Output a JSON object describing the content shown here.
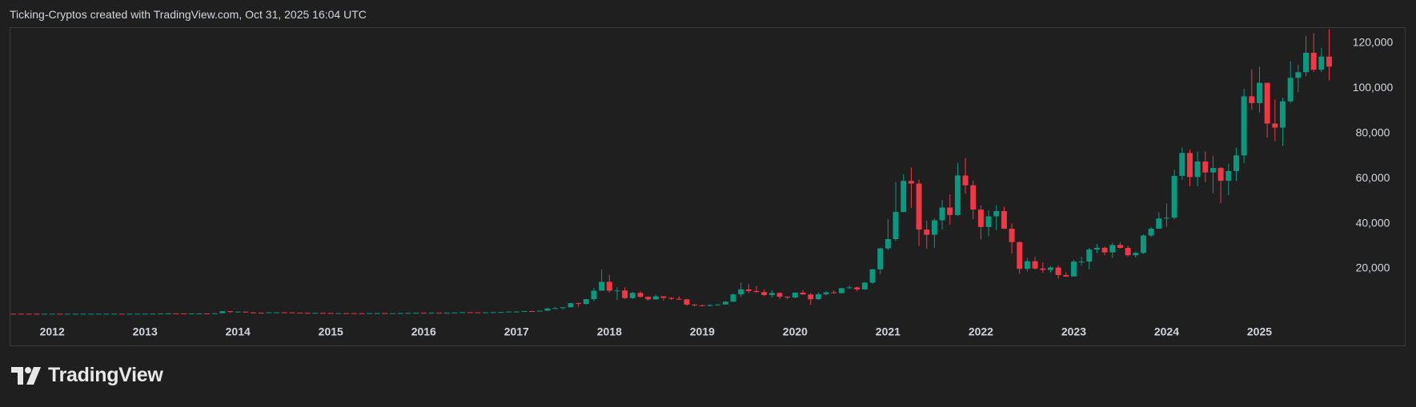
{
  "header": "Ticking-Cryptos created with TradingView.com, Oct 31, 2025 16:04 UTC",
  "logo": "TradingView",
  "chart_data": {
    "type": "candlestick",
    "up_color": "#089981",
    "down_color": "#f23645",
    "grid": false,
    "xlim": [
      -0.5,
      171.5
    ],
    "ylim": [
      -2000,
      127100
    ],
    "xticks": [
      {
        "value": 5,
        "label": "2012"
      },
      {
        "value": 17,
        "label": "2013"
      },
      {
        "value": 29,
        "label": "2014"
      },
      {
        "value": 41,
        "label": "2015"
      },
      {
        "value": 53,
        "label": "2016"
      },
      {
        "value": 65,
        "label": "2017"
      },
      {
        "value": 77,
        "label": "2018"
      },
      {
        "value": 89,
        "label": "2019"
      },
      {
        "value": 101,
        "label": "2020"
      },
      {
        "value": 113,
        "label": "2021"
      },
      {
        "value": 125,
        "label": "2022"
      },
      {
        "value": 137,
        "label": "2023"
      },
      {
        "value": 149,
        "label": "2024"
      },
      {
        "value": 161,
        "label": "2025"
      }
    ],
    "yticks": [
      {
        "value": 20000,
        "label": "20,000"
      },
      {
        "value": 40000,
        "label": "40,000"
      },
      {
        "value": 60000,
        "label": "60,000"
      },
      {
        "value": 80000,
        "label": "80,000"
      },
      {
        "value": 100000,
        "label": "100,000"
      },
      {
        "value": 120000,
        "label": "120,000"
      }
    ],
    "open": [
      13.4,
      8.2,
      5.1,
      3.2,
      3.0,
      4.7,
      5.5,
      4.9,
      4.9,
      5.0,
      5.2,
      6.7,
      9.3,
      10.2,
      12.4,
      11.2,
      12.6,
      13.5,
      20.4,
      33.4,
      93,
      139,
      129,
      97,
      106,
      135,
      133,
      204,
      1130,
      754,
      935,
      550,
      455,
      448,
      628,
      641,
      585,
      480,
      387,
      338,
      378,
      320,
      217,
      254,
      244,
      236,
      230,
      263,
      284,
      230,
      236,
      314,
      377,
      430,
      368,
      437,
      416,
      448,
      531,
      673,
      624,
      575,
      609,
      700,
      742,
      964,
      970,
      1190,
      1080,
      1350,
      2300,
      2480,
      2875,
      4700,
      4340,
      6470,
      10230,
      14150,
      10220,
      10330,
      6930,
      9240,
      7490,
      6390,
      7730,
      7030,
      6630,
      6370,
      4040,
      3740,
      3460,
      3850,
      4100,
      5320,
      8570,
      10820,
      10080,
      9630,
      8290,
      9200,
      7570,
      7190,
      9350,
      8540,
      6440,
      8660,
      9460,
      9140,
      11350,
      11680,
      10780,
      13800,
      19700,
      28990,
      33110,
      45140,
      58920,
      57750,
      37330,
      35040,
      41460,
      47100,
      43790,
      61320,
      56950,
      46220,
      38480,
      43190,
      45540,
      37710,
      31790,
      19940,
      23300,
      20050,
      19430,
      20490,
      17170,
      16540,
      23140,
      23150,
      28480,
      29250,
      27220,
      30480,
      29230,
      25940,
      26970,
      34670,
      37720,
      42270,
      42580,
      61130,
      71330,
      60640,
      67490,
      62680,
      64630,
      58970,
      63330,
      70220,
      96450,
      93430,
      102430,
      84370,
      82550,
      94210,
      104640,
      107140,
      115760,
      108240,
      114050
    ],
    "high": [
      13.5,
      8.8,
      5.2,
      3.5,
      4.8,
      7.4,
      6.6,
      5.4,
      5.4,
      5.2,
      6.8,
      9.5,
      16,
      12.6,
      12.8,
      12.6,
      13.8,
      20.6,
      33.5,
      95,
      266,
      140,
      129,
      109,
      139,
      145,
      220,
      1242,
      1163,
      1020,
      950,
      719,
      548,
      631,
      677,
      659,
      600,
      490,
      415,
      455,
      384,
      320,
      265,
      300,
      262,
      247,
      268,
      318,
      291,
      244,
      334,
      496,
      465,
      462,
      448,
      440,
      468,
      531,
      780,
      703,
      624,
      610,
      716,
      753,
      966,
      1150,
      1210,
      1290,
      1350,
      2760,
      2980,
      2920,
      4740,
      4980,
      6470,
      11500,
      19700,
      17250,
      11790,
      11700,
      9770,
      9990,
      7760,
      8490,
      7770,
      7400,
      7680,
      6570,
      4310,
      4070,
      4210,
      4100,
      5640,
      9070,
      13880,
      13130,
      12320,
      10900,
      10370,
      9510,
      7740,
      9550,
      10500,
      9190,
      9460,
      10070,
      10380,
      11440,
      12470,
      12050,
      14100,
      19860,
      29300,
      41950,
      58350,
      61800,
      64860,
      59500,
      41330,
      42300,
      50500,
      52920,
      66930,
      69000,
      59040,
      47990,
      45820,
      48190,
      47460,
      40000,
      31960,
      24670,
      25210,
      22800,
      21090,
      21480,
      18390,
      23960,
      25250,
      29190,
      31000,
      29830,
      31430,
      31800,
      30220,
      27490,
      35200,
      38430,
      45000,
      48970,
      63910,
      73780,
      72770,
      71950,
      71980,
      70020,
      65100,
      66500,
      73620,
      99800,
      108350,
      109590,
      102500,
      95040,
      95770,
      111980,
      110400,
      123220,
      124460,
      117900,
      126200
    ],
    "low": [
      7.1,
      4.7,
      2.2,
      2.0,
      2.8,
      4.6,
      4.2,
      4.6,
      4.7,
      4.9,
      5.2,
      6.5,
      7.6,
      10,
      10,
      10.7,
      12.4,
      13.3,
      19.6,
      33,
      50,
      80,
      89,
      65,
      93,
      108,
      100,
      190,
      380,
      750,
      520,
      445,
      340,
      448,
      535,
      565,
      461,
      375,
      289,
      324,
      310,
      170,
      213,
      235,
      216,
      228,
      218,
      253,
      198,
      225,
      236,
      313,
      356,
      355,
      368,
      412,
      414,
      445,
      531,
      504,
      540,
      590,
      607,
      696,
      742,
      750,
      920,
      890,
      1080,
      1350,
      2100,
      1840,
      2680,
      2970,
      4110,
      5520,
      10710,
      9400,
      6050,
      6600,
      6530,
      7090,
      5780,
      6130,
      5880,
      6140,
      6090,
      3560,
      3160,
      3380,
      3380,
      3700,
      4060,
      5330,
      7450,
      9100,
      9330,
      7760,
      7300,
      6530,
      6430,
      6850,
      8450,
      3860,
      6160,
      8130,
      8900,
      8980,
      11130,
      9880,
      10560,
      13200,
      17570,
      28130,
      32300,
      45000,
      47000,
      30000,
      28800,
      29280,
      37330,
      39600,
      43290,
      53260,
      42000,
      32950,
      34320,
      37150,
      37680,
      26700,
      17620,
      18780,
      19530,
      18150,
      18190,
      15480,
      16260,
      16500,
      21350,
      19570,
      26940,
      25880,
      24800,
      28860,
      25330,
      24920,
      26560,
      34090,
      37650,
      38520,
      41880,
      59220,
      56550,
      56560,
      58400,
      53450,
      49050,
      52550,
      58880,
      66840,
      90500,
      89260,
      78200,
      76600,
      74420,
      93360,
      98240,
      105300,
      107270,
      107260,
      103530
    ],
    "close": [
      8.2,
      5.1,
      3.2,
      3.0,
      4.7,
      5.5,
      4.9,
      4.9,
      5.0,
      5.2,
      6.7,
      9.3,
      10.2,
      12.4,
      11.2,
      12.6,
      13.5,
      20.4,
      33.4,
      93,
      139,
      129,
      97,
      106,
      135,
      133,
      204,
      1130,
      754,
      935,
      550,
      455,
      448,
      628,
      641,
      585,
      480,
      387,
      338,
      378,
      320,
      217,
      254,
      244,
      236,
      230,
      263,
      284,
      230,
      236,
      314,
      377,
      430,
      368,
      437,
      416,
      448,
      531,
      673,
      624,
      575,
      609,
      700,
      742,
      964,
      970,
      1190,
      1080,
      1350,
      2300,
      2480,
      2875,
      4700,
      4340,
      6470,
      10230,
      14150,
      10220,
      10330,
      6930,
      9240,
      7490,
      6390,
      7730,
      7030,
      6630,
      6370,
      4040,
      3740,
      3460,
      3850,
      4100,
      5320,
      8570,
      10820,
      10080,
      9630,
      8290,
      9200,
      7570,
      7190,
      9350,
      8540,
      6440,
      8660,
      9460,
      9140,
      11350,
      11680,
      10780,
      13800,
      19700,
      28990,
      33110,
      45140,
      58920,
      57750,
      37330,
      35040,
      41460,
      47100,
      43790,
      61320,
      56950,
      46220,
      38480,
      43190,
      45540,
      37710,
      31790,
      19940,
      23300,
      20050,
      19430,
      20490,
      17170,
      16540,
      23140,
      23150,
      28480,
      29250,
      27220,
      30480,
      29230,
      25940,
      26970,
      34670,
      37720,
      42270,
      42580,
      61130,
      71330,
      60640,
      67490,
      62680,
      64630,
      58970,
      63330,
      70220,
      96450,
      93430,
      102430,
      84370,
      82550,
      94210,
      104640,
      107140,
      115760,
      108240,
      114050,
      109600
    ]
  }
}
